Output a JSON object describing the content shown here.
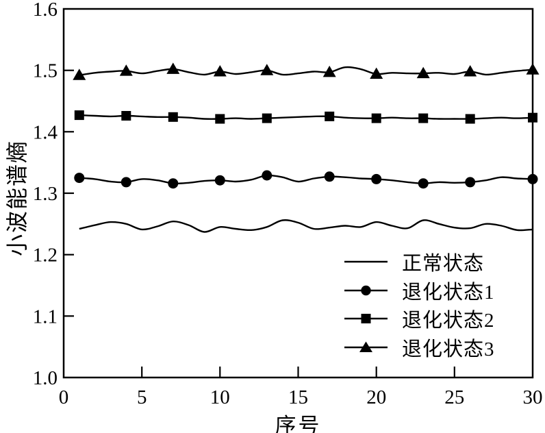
{
  "figure": {
    "background_color": "#ffffff",
    "ink_color": "#000000"
  },
  "chart_data": {
    "type": "line",
    "title": "",
    "xlabel": "序号",
    "ylabel": "小波能谱熵",
    "xlim": [
      0,
      30
    ],
    "ylim": [
      1.0,
      1.6
    ],
    "xticks": [
      0,
      5,
      10,
      15,
      20,
      25,
      30
    ],
    "xtick_labels": [
      "0",
      "5",
      "10",
      "15",
      "20",
      "25",
      "30"
    ],
    "yticks": [
      1.0,
      1.1,
      1.2,
      1.3,
      1.4,
      1.5,
      1.6
    ],
    "ytick_labels": [
      "1.0",
      "1.1",
      "1.2",
      "1.3",
      "1.4",
      "1.5",
      "1.6"
    ],
    "grid": false,
    "legend_position": "inside-lower-right",
    "x": [
      1,
      2,
      3,
      4,
      5,
      6,
      7,
      8,
      9,
      10,
      11,
      12,
      13,
      14,
      15,
      16,
      17,
      18,
      19,
      20,
      21,
      22,
      23,
      24,
      25,
      26,
      27,
      28,
      29,
      30
    ],
    "series": [
      {
        "name": "正常状态",
        "marker": "none",
        "marker_indices": [],
        "values": [
          1.242,
          1.248,
          1.253,
          1.25,
          1.241,
          1.246,
          1.254,
          1.248,
          1.237,
          1.245,
          1.242,
          1.24,
          1.245,
          1.256,
          1.252,
          1.242,
          1.244,
          1.247,
          1.245,
          1.253,
          1.247,
          1.243,
          1.256,
          1.25,
          1.244,
          1.243,
          1.25,
          1.247,
          1.24,
          1.241
        ]
      },
      {
        "name": "退化状态1",
        "marker": "circle",
        "marker_indices": [
          0,
          3,
          6,
          9,
          12,
          16,
          19,
          22,
          25,
          29
        ],
        "values": [
          1.325,
          1.323,
          1.319,
          1.318,
          1.323,
          1.321,
          1.316,
          1.317,
          1.32,
          1.321,
          1.319,
          1.322,
          1.329,
          1.326,
          1.319,
          1.324,
          1.327,
          1.326,
          1.324,
          1.323,
          1.321,
          1.318,
          1.316,
          1.318,
          1.317,
          1.318,
          1.321,
          1.326,
          1.324,
          1.323
        ]
      },
      {
        "name": "退化状态2",
        "marker": "square",
        "marker_indices": [
          0,
          3,
          6,
          9,
          12,
          16,
          19,
          22,
          25,
          29
        ],
        "values": [
          1.427,
          1.426,
          1.425,
          1.426,
          1.425,
          1.424,
          1.424,
          1.423,
          1.421,
          1.421,
          1.422,
          1.421,
          1.422,
          1.423,
          1.424,
          1.425,
          1.425,
          1.423,
          1.422,
          1.422,
          1.423,
          1.422,
          1.422,
          1.421,
          1.421,
          1.421,
          1.422,
          1.423,
          1.422,
          1.423
        ]
      },
      {
        "name": "退化状态3",
        "marker": "triangle",
        "marker_indices": [
          0,
          3,
          6,
          9,
          12,
          16,
          19,
          22,
          25,
          29
        ],
        "values": [
          1.492,
          1.496,
          1.498,
          1.499,
          1.495,
          1.499,
          1.502,
          1.497,
          1.493,
          1.498,
          1.494,
          1.497,
          1.5,
          1.493,
          1.495,
          1.498,
          1.497,
          1.505,
          1.502,
          1.494,
          1.496,
          1.495,
          1.495,
          1.496,
          1.494,
          1.498,
          1.493,
          1.496,
          1.499,
          1.501
        ]
      }
    ]
  }
}
